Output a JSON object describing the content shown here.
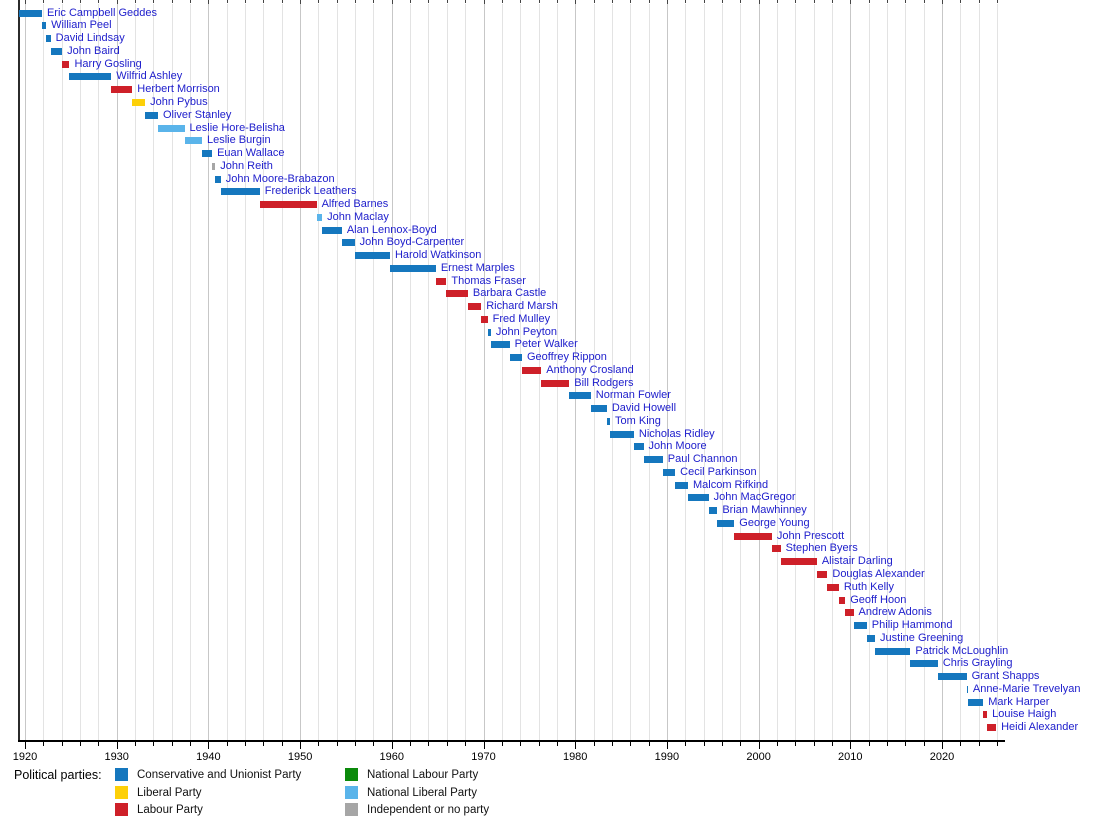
{
  "chart_data": {
    "type": "bar",
    "subtype": "gantt-timeline",
    "description": "Timeline of UK transport ministers by political party",
    "legend_title": "Political parties:",
    "x_axis": {
      "min_year": 1919.2,
      "max_year": 2026.9,
      "major_ticks": [
        1920,
        1930,
        1940,
        1950,
        1960,
        1970,
        1980,
        1990,
        2000,
        2010,
        2020
      ],
      "minor_tick_step": 2,
      "grid": true,
      "grid_step_years": 2
    },
    "label_color": "#2020cc",
    "parties": {
      "con": {
        "label": "Conservative and Unionist Party",
        "color": "#1577be"
      },
      "lib": {
        "label": "Liberal Party",
        "color": "#fdd008"
      },
      "lab": {
        "label": "Labour Party",
        "color": "#ce2029"
      },
      "nlab": {
        "label": "National Labour Party",
        "color": "#0b8a0b"
      },
      "nlib": {
        "label": "National Liberal Party",
        "color": "#5ab4ea"
      },
      "ind": {
        "label": "Independent or no party",
        "color": "#a6a6a6"
      }
    },
    "legend_columns": [
      [
        "con",
        "lib",
        "lab"
      ],
      [
        "nlab",
        "nlib",
        "ind"
      ]
    ],
    "entries": [
      {
        "name": "Eric Campbell Geddes",
        "start": 1919.3,
        "end": 1921.85,
        "party": "con"
      },
      {
        "name": "William Peel",
        "start": 1921.85,
        "end": 1922.3,
        "party": "con"
      },
      {
        "name": "David Lindsay",
        "start": 1922.3,
        "end": 1922.8,
        "party": "con"
      },
      {
        "name": "John Baird",
        "start": 1922.8,
        "end": 1924.05,
        "party": "con"
      },
      {
        "name": "Harry Gosling",
        "start": 1924.05,
        "end": 1924.85,
        "party": "lab"
      },
      {
        "name": "Wilfrid Ashley",
        "start": 1924.85,
        "end": 1929.4,
        "party": "con"
      },
      {
        "name": "Herbert Morrison",
        "start": 1929.4,
        "end": 1931.7,
        "party": "lab"
      },
      {
        "name": "John Pybus",
        "start": 1931.7,
        "end": 1933.1,
        "party": "lib"
      },
      {
        "name": "Oliver Stanley",
        "start": 1933.1,
        "end": 1934.5,
        "party": "con"
      },
      {
        "name": "Leslie Hore-Belisha",
        "start": 1934.5,
        "end": 1937.4,
        "party": "nlib"
      },
      {
        "name": "Leslie Burgin",
        "start": 1937.4,
        "end": 1939.3,
        "party": "nlib"
      },
      {
        "name": "Euan Wallace",
        "start": 1939.3,
        "end": 1940.4,
        "party": "con"
      },
      {
        "name": "John Reith",
        "start": 1940.4,
        "end": 1940.75,
        "party": "ind"
      },
      {
        "name": "John Moore-Brabazon",
        "start": 1940.75,
        "end": 1941.35,
        "party": "con"
      },
      {
        "name": "Frederick Leathers",
        "start": 1941.35,
        "end": 1945.6,
        "party": "con"
      },
      {
        "name": "Alfred Barnes",
        "start": 1945.6,
        "end": 1951.8,
        "party": "lab"
      },
      {
        "name": "John Maclay",
        "start": 1951.8,
        "end": 1952.4,
        "party": "nlib"
      },
      {
        "name": "Alan Lennox-Boyd",
        "start": 1952.4,
        "end": 1954.55,
        "party": "con"
      },
      {
        "name": "John Boyd-Carpenter",
        "start": 1954.55,
        "end": 1955.95,
        "party": "con"
      },
      {
        "name": "Harold Watkinson",
        "start": 1955.95,
        "end": 1959.8,
        "party": "con"
      },
      {
        "name": "Ernest Marples",
        "start": 1959.8,
        "end": 1964.8,
        "party": "con"
      },
      {
        "name": "Thomas Fraser",
        "start": 1964.8,
        "end": 1965.95,
        "party": "lab"
      },
      {
        "name": "Barbara Castle",
        "start": 1965.95,
        "end": 1968.3,
        "party": "lab"
      },
      {
        "name": "Richard Marsh",
        "start": 1968.3,
        "end": 1969.75,
        "party": "lab"
      },
      {
        "name": "Fred Mulley",
        "start": 1969.75,
        "end": 1970.45,
        "party": "lab"
      },
      {
        "name": "John Peyton",
        "start": 1970.45,
        "end": 1970.8,
        "party": "con"
      },
      {
        "name": "Peter Walker",
        "start": 1970.8,
        "end": 1972.85,
        "party": "con"
      },
      {
        "name": "Geoffrey Rippon",
        "start": 1972.85,
        "end": 1974.2,
        "party": "con"
      },
      {
        "name": "Anthony Crosland",
        "start": 1974.2,
        "end": 1976.3,
        "party": "lab"
      },
      {
        "name": "Bill Rodgers",
        "start": 1976.3,
        "end": 1979.35,
        "party": "lab"
      },
      {
        "name": "Norman Fowler",
        "start": 1979.35,
        "end": 1981.7,
        "party": "con"
      },
      {
        "name": "David Howell",
        "start": 1981.7,
        "end": 1983.45,
        "party": "con"
      },
      {
        "name": "Tom King",
        "start": 1983.45,
        "end": 1983.8,
        "party": "con"
      },
      {
        "name": "Nicholas Ridley",
        "start": 1983.8,
        "end": 1986.4,
        "party": "con"
      },
      {
        "name": "John Moore",
        "start": 1986.4,
        "end": 1987.45,
        "party": "con"
      },
      {
        "name": "Paul Channon",
        "start": 1987.45,
        "end": 1989.55,
        "party": "con"
      },
      {
        "name": "Cecil Parkinson",
        "start": 1989.55,
        "end": 1990.9,
        "party": "con"
      },
      {
        "name": "Malcom Rifkind",
        "start": 1990.9,
        "end": 1992.3,
        "party": "con"
      },
      {
        "name": "John MacGregor",
        "start": 1992.3,
        "end": 1994.55,
        "party": "con"
      },
      {
        "name": "Brian Mawhinney",
        "start": 1994.55,
        "end": 1995.5,
        "party": "con"
      },
      {
        "name": "George Young",
        "start": 1995.5,
        "end": 1997.35,
        "party": "con"
      },
      {
        "name": "John Prescott",
        "start": 1997.35,
        "end": 2001.45,
        "party": "lab"
      },
      {
        "name": "Stephen Byers",
        "start": 2001.45,
        "end": 2002.4,
        "party": "lab"
      },
      {
        "name": "Alistair Darling",
        "start": 2002.4,
        "end": 2006.35,
        "party": "lab"
      },
      {
        "name": "Douglas Alexander",
        "start": 2006.35,
        "end": 2007.5,
        "party": "lab"
      },
      {
        "name": "Ruth Kelly",
        "start": 2007.5,
        "end": 2008.75,
        "party": "lab"
      },
      {
        "name": "Geoff Hoon",
        "start": 2008.75,
        "end": 2009.45,
        "party": "lab"
      },
      {
        "name": "Andrew Adonis",
        "start": 2009.45,
        "end": 2010.35,
        "party": "lab"
      },
      {
        "name": "Philip Hammond",
        "start": 2010.35,
        "end": 2011.8,
        "party": "con"
      },
      {
        "name": "Justine Greening",
        "start": 2011.8,
        "end": 2012.7,
        "party": "con"
      },
      {
        "name": "Patrick McLoughlin",
        "start": 2012.7,
        "end": 2016.55,
        "party": "con"
      },
      {
        "name": "Chris Grayling",
        "start": 2016.55,
        "end": 2019.55,
        "party": "con"
      },
      {
        "name": "Grant Shapps",
        "start": 2019.55,
        "end": 2022.68,
        "party": "con"
      },
      {
        "name": "Anne-Marie Trevelyan",
        "start": 2022.68,
        "end": 2022.82,
        "party": "con"
      },
      {
        "name": "Mark Harper",
        "start": 2022.82,
        "end": 2024.5,
        "party": "con"
      },
      {
        "name": "Louise Haigh",
        "start": 2024.5,
        "end": 2024.92,
        "party": "lab"
      },
      {
        "name": "Heidi Alexander",
        "start": 2024.92,
        "end": 2025.9,
        "party": "lab"
      }
    ]
  }
}
